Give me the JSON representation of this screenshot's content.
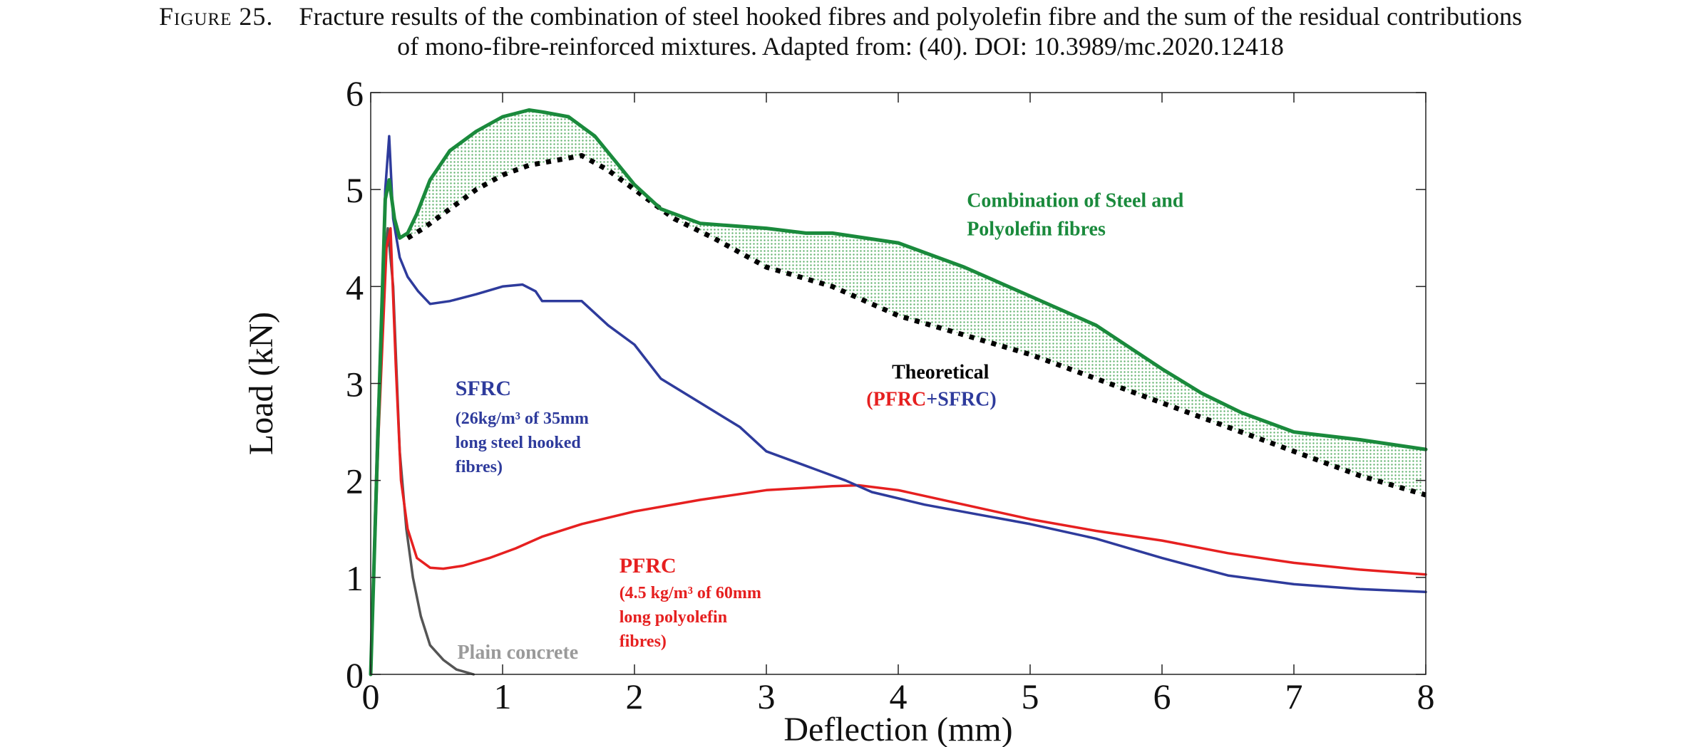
{
  "caption": {
    "label": "Figure 25.",
    "line1": "Fracture results of the combination of steel hooked fibres and polyolefin fibre and the sum of the residual contributions",
    "line2": "of mono-fibre-reinforced mixtures. Adapted from: (40). DOI: 10.3989/mc.2020.12418"
  },
  "chart_data": {
    "type": "line",
    "xlabel": "Deflection (mm)",
    "ylabel": "Load (kN)",
    "xlim": [
      0,
      8
    ],
    "ylim": [
      0,
      6
    ],
    "xticks": [
      "0",
      "1",
      "2",
      "3",
      "4",
      "5",
      "6",
      "7",
      "8"
    ],
    "yticks": [
      "0",
      "1",
      "2",
      "3",
      "4",
      "5",
      "6"
    ],
    "grid": false,
    "legend": "inline labels",
    "series": [
      {
        "key": "plain",
        "color": "#555555",
        "x": [
          0,
          0.05,
          0.1,
          0.13,
          0.17,
          0.22,
          0.27,
          0.32,
          0.38,
          0.45,
          0.55,
          0.65,
          0.78
        ],
        "y": [
          0,
          2.5,
          4.2,
          4.6,
          4.0,
          2.3,
          1.5,
          1.0,
          0.6,
          0.3,
          0.15,
          0.05,
          0
        ]
      },
      {
        "key": "pfrc",
        "color": "#e62020",
        "x": [
          0,
          0.06,
          0.12,
          0.15,
          0.19,
          0.23,
          0.28,
          0.35,
          0.45,
          0.55,
          0.7,
          0.9,
          1.1,
          1.3,
          1.6,
          2.0,
          2.5,
          3.0,
          3.5,
          3.7,
          4.0,
          4.5,
          5.0,
          5.5,
          6.0,
          6.5,
          7.0,
          7.5,
          8.0
        ],
        "y": [
          0,
          2.5,
          4.4,
          4.6,
          3.2,
          2.0,
          1.5,
          1.2,
          1.1,
          1.09,
          1.12,
          1.2,
          1.3,
          1.42,
          1.55,
          1.68,
          1.8,
          1.9,
          1.94,
          1.95,
          1.9,
          1.75,
          1.6,
          1.48,
          1.38,
          1.25,
          1.15,
          1.08,
          1.03
        ]
      },
      {
        "key": "sfrc",
        "color": "#2e3b9c",
        "x": [
          0,
          0.06,
          0.11,
          0.14,
          0.17,
          0.22,
          0.28,
          0.36,
          0.45,
          0.6,
          0.8,
          1.0,
          1.15,
          1.25,
          1.3,
          1.6,
          1.8,
          2.0,
          2.2,
          2.5,
          2.8,
          3.0,
          3.3,
          3.6,
          3.8,
          4.2,
          4.6,
          5.0,
          5.5,
          6.0,
          6.5,
          7.0,
          7.5,
          8.0
        ],
        "y": [
          0,
          2.8,
          5.0,
          5.55,
          4.7,
          4.3,
          4.1,
          3.95,
          3.82,
          3.85,
          3.92,
          4.0,
          4.02,
          3.95,
          3.85,
          3.85,
          3.6,
          3.4,
          3.05,
          2.8,
          2.55,
          2.3,
          2.15,
          2.0,
          1.88,
          1.75,
          1.65,
          1.55,
          1.4,
          1.2,
          1.02,
          0.93,
          0.88,
          0.85
        ]
      },
      {
        "key": "combination",
        "color": "#1a8a3c",
        "x": [
          0,
          0.06,
          0.11,
          0.14,
          0.18,
          0.22,
          0.28,
          0.35,
          0.45,
          0.6,
          0.8,
          1.0,
          1.2,
          1.3,
          1.5,
          1.7,
          1.85,
          2.0,
          2.2,
          2.5,
          3.0,
          3.3,
          3.5,
          4.0,
          4.5,
          5.0,
          5.5,
          6.0,
          6.3,
          6.6,
          7.0,
          7.5,
          8.0
        ],
        "y": [
          0,
          2.7,
          4.9,
          5.1,
          4.7,
          4.5,
          4.55,
          4.75,
          5.1,
          5.4,
          5.6,
          5.75,
          5.82,
          5.8,
          5.75,
          5.55,
          5.3,
          5.05,
          4.8,
          4.65,
          4.6,
          4.55,
          4.55,
          4.45,
          4.2,
          3.9,
          3.6,
          3.15,
          2.9,
          2.7,
          2.5,
          2.42,
          2.32
        ]
      },
      {
        "key": "theoretical",
        "color": "#000000",
        "dotted": true,
        "x": [
          0.28,
          0.4,
          0.6,
          0.8,
          1.0,
          1.2,
          1.4,
          1.6,
          1.8,
          2.0,
          2.3,
          2.6,
          3.0,
          3.5,
          4.0,
          4.5,
          5.0,
          5.5,
          6.0,
          6.5,
          7.0,
          7.5,
          8.0
        ],
        "y": [
          4.5,
          4.6,
          4.8,
          5.0,
          5.15,
          5.25,
          5.3,
          5.35,
          5.2,
          5.0,
          4.7,
          4.5,
          4.2,
          4.0,
          3.7,
          3.5,
          3.3,
          3.05,
          2.8,
          2.55,
          2.3,
          2.05,
          1.85
        ]
      }
    ],
    "annotations": {
      "combination": {
        "lines": [
          "Combination of Steel and",
          "Polyolefin fibres"
        ],
        "color": "#1a8a3c",
        "x": 4.52,
        "y": 4.82
      },
      "theoretical": {
        "title": "Theoretical",
        "open": "(",
        "pfrc": "PFRC",
        "plus": "+",
        "sfrc": "SFRC",
        "close": ")",
        "x": 3.78,
        "y": 3.05
      },
      "sfrc": {
        "title": "SFRC",
        "lines": [
          "(26kg/m³ of 35mm",
          "long steel hooked",
          "fibres)"
        ],
        "color": "#2e3b9c",
        "x": 0.75,
        "y": 2.88
      },
      "pfrc": {
        "title": "PFRC",
        "lines": [
          "(4.5 kg/m³ of 60mm",
          "long polyolefin",
          "fibres)"
        ],
        "color": "#e62020",
        "x": 1.82,
        "y": 1.08
      },
      "plain": {
        "title": "Plain concrete",
        "color": "#9a9a9a",
        "x": 0.57,
        "y": 0.22
      }
    }
  }
}
